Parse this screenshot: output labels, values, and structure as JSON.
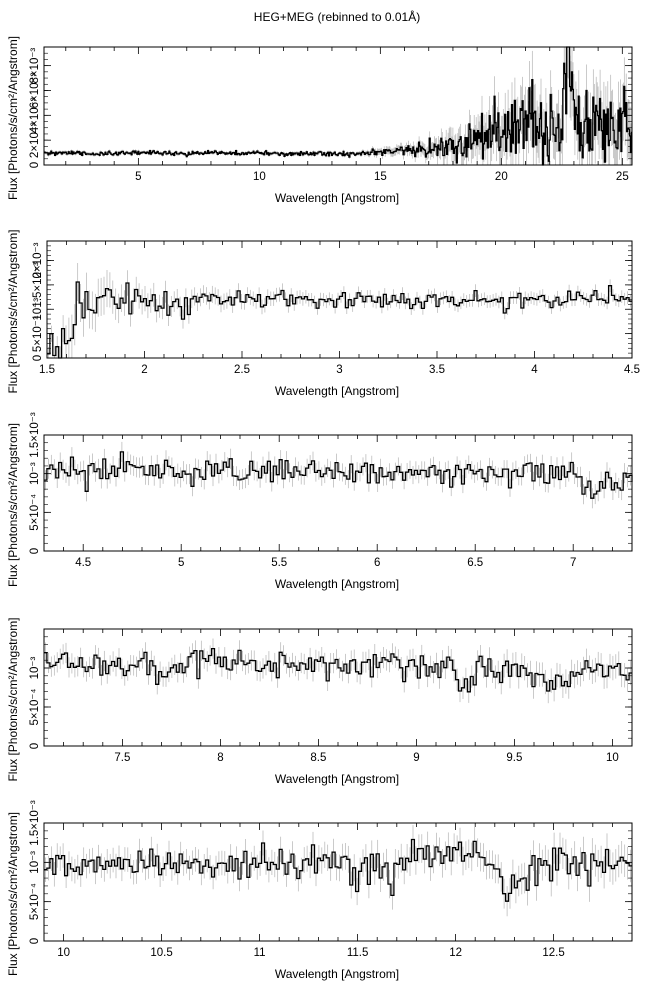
{
  "figure": {
    "title": "HEG+MEG (rebinned to 0.01Å)"
  },
  "chart_data": [
    {
      "type": "line",
      "title": "HEG+MEG (rebinned to 0.01Å)",
      "xlabel": "Wavelength [Angstrom]",
      "ylabel": "Flux [Photons/s/cm²/Angstrom]",
      "xlim": [
        1.1,
        25.4
      ],
      "ylim": [
        0,
        0.0095
      ],
      "grid": false,
      "xticks": [
        {
          "v": 5,
          "label": "5"
        },
        {
          "v": 10,
          "label": "10"
        },
        {
          "v": 15,
          "label": "15"
        },
        {
          "v": 20,
          "label": "20"
        },
        {
          "v": 25,
          "label": "25"
        }
      ],
      "yticks": [
        {
          "v": 0,
          "label": "0"
        },
        {
          "v": 0.002,
          "label": "2×10⁻³"
        },
        {
          "v": 0.004,
          "label": "4×10⁻³"
        },
        {
          "v": 0.006,
          "label": "6×10⁻³"
        },
        {
          "v": 0.008,
          "label": "8×10⁻³"
        }
      ],
      "series": [
        {
          "x": [
            1.2,
            2.0,
            3.0,
            4.0,
            5.0,
            6.0,
            7.0,
            8.0,
            9.0,
            10.0,
            11.0,
            12.0,
            13.0,
            14.0,
            15.0,
            16.0,
            17.0,
            17.5,
            18.0,
            18.5,
            19.0,
            19.5,
            20.0,
            20.5,
            21.0,
            21.3,
            21.6,
            22.0,
            22.5,
            22.8,
            23.0,
            23.5,
            24.0,
            24.5,
            25.0,
            25.3
          ],
          "y": [
            0.0009,
            0.001,
            0.0009,
            0.0009,
            0.001,
            0.001,
            0.0009,
            0.001,
            0.0009,
            0.001,
            0.0009,
            0.0009,
            0.0009,
            0.0009,
            0.001,
            0.0011,
            0.0013,
            0.0015,
            0.0017,
            0.0016,
            0.002,
            0.0022,
            0.0023,
            0.0025,
            0.003,
            0.0055,
            0.0025,
            0.003,
            0.0028,
            0.0095,
            0.003,
            0.003,
            0.0033,
            0.003,
            0.0035,
            0.003
          ],
          "noise": [
            0.0001,
            0.0001,
            0.0001,
            0.0001,
            0.0001,
            0.0001,
            0.0001,
            0.0001,
            0.0001,
            0.0001,
            0.0001,
            0.0001,
            0.0001,
            0.0001,
            0.0002,
            0.0003,
            0.0004,
            0.0006,
            0.0008,
            0.0008,
            0.001,
            0.0012,
            0.0013,
            0.0014,
            0.0015,
            0.0018,
            0.0015,
            0.0015,
            0.0015,
            0.002,
            0.0016,
            0.0016,
            0.0018,
            0.0017,
            0.0018,
            0.0018
          ]
        }
      ]
    },
    {
      "type": "line",
      "xlabel": "Wavelength [Angstrom]",
      "ylabel": "Flux [Photons/s/cm²/Angstrom]",
      "xlim": [
        1.5,
        4.5
      ],
      "ylim": [
        0,
        0.0024
      ],
      "grid": false,
      "xticks": [
        {
          "v": 1.5,
          "label": "1.5"
        },
        {
          "v": 2,
          "label": "2"
        },
        {
          "v": 2.5,
          "label": "2.5"
        },
        {
          "v": 3,
          "label": "3"
        },
        {
          "v": 3.5,
          "label": "3.5"
        },
        {
          "v": 4,
          "label": "4"
        },
        {
          "v": 4.5,
          "label": "4.5"
        }
      ],
      "yticks": [
        {
          "v": 0,
          "label": "0"
        },
        {
          "v": 0.0005,
          "label": "5×10⁻⁴"
        },
        {
          "v": 0.001,
          "label": "10⁻³"
        },
        {
          "v": 0.0015,
          "label": "1.5×10⁻³"
        },
        {
          "v": 0.002,
          "label": "2×10⁻³"
        }
      ],
      "series": [
        {
          "x": [
            1.5,
            1.58,
            1.62,
            1.65,
            1.7,
            1.8,
            1.9,
            2.0,
            2.2,
            2.5,
            3.0,
            3.5,
            4.0,
            4.5
          ],
          "y": [
            0.0001,
            0.0002,
            0.0008,
            0.0012,
            0.0011,
            0.0013,
            0.0012,
            0.0011,
            0.0011,
            0.0012,
            0.0012,
            0.0012,
            0.0012,
            0.0012
          ],
          "noise": [
            0.0001,
            0.0002,
            0.0004,
            0.0003,
            0.0003,
            0.0003,
            0.0002,
            0.0002,
            0.00015,
            0.00012,
            0.0001,
            0.0001,
            0.0001,
            0.0001
          ]
        }
      ]
    },
    {
      "type": "line",
      "xlabel": "Wavelength [Angstrom]",
      "ylabel": "Flux [Photons/s/cm²/Angstrom]",
      "xlim": [
        4.3,
        7.3
      ],
      "ylim": [
        0,
        0.0015
      ],
      "grid": false,
      "xticks": [
        {
          "v": 4.5,
          "label": "4.5"
        },
        {
          "v": 5,
          "label": "5"
        },
        {
          "v": 5.5,
          "label": "5.5"
        },
        {
          "v": 6,
          "label": "6"
        },
        {
          "v": 6.5,
          "label": "6.5"
        },
        {
          "v": 7,
          "label": "7"
        }
      ],
      "yticks": [
        {
          "v": 0,
          "label": "0"
        },
        {
          "v": 0.0005,
          "label": "5×10⁻⁴"
        },
        {
          "v": 0.001,
          "label": "10⁻³"
        },
        {
          "v": 0.0015,
          "label": "1.5×10⁻³"
        }
      ],
      "series": [
        {
          "x": [
            4.3,
            4.8,
            5.3,
            5.8,
            6.3,
            6.8,
            7.0,
            7.1,
            7.3
          ],
          "y": [
            0.00105,
            0.00103,
            0.00102,
            0.00102,
            0.00102,
            0.00101,
            0.00098,
            0.0008,
            0.001
          ],
          "noise": [
            0.0001,
            0.0001,
            0.0001,
            9e-05,
            9e-05,
            9e-05,
            0.0001,
            0.0001,
            0.0001
          ]
        }
      ]
    },
    {
      "type": "line",
      "xlabel": "Wavelength [Angstrom]",
      "ylabel": "Flux [Photons/s/cm²/Angstrom]",
      "xlim": [
        7.1,
        10.1
      ],
      "ylim": [
        0,
        0.0015
      ],
      "grid": false,
      "xticks": [
        {
          "v": 7.5,
          "label": "7.5"
        },
        {
          "v": 8,
          "label": "8"
        },
        {
          "v": 8.5,
          "label": "8.5"
        },
        {
          "v": 9,
          "label": "9"
        },
        {
          "v": 9.5,
          "label": "9.5"
        },
        {
          "v": 10,
          "label": "10"
        }
      ],
      "yticks": [
        {
          "v": 0,
          "label": "0"
        },
        {
          "v": 0.0005,
          "label": "5×10⁻⁴"
        },
        {
          "v": 0.001,
          "label": "10⁻³"
        }
      ],
      "series": [
        {
          "x": [
            7.1,
            7.6,
            8.1,
            8.6,
            9.1,
            9.25,
            9.3,
            9.5,
            9.75,
            9.8,
            10.1
          ],
          "y": [
            0.00108,
            0.00106,
            0.00104,
            0.00104,
            0.00102,
            0.0009,
            0.001,
            0.00096,
            0.00082,
            0.00095,
            0.00098
          ],
          "noise": [
            0.0001,
            0.0001,
            0.0001,
            0.0001,
            0.00011,
            0.00011,
            0.00011,
            0.00012,
            0.00012,
            0.00012,
            0.00012
          ]
        }
      ]
    },
    {
      "type": "line",
      "xlabel": "Wavelength [Angstrom]",
      "ylabel": "Flux [Photons/s/cm²/Angstrom]",
      "xlim": [
        9.9,
        12.9
      ],
      "ylim": [
        0,
        0.0015
      ],
      "grid": false,
      "xticks": [
        {
          "v": 10,
          "label": "10"
        },
        {
          "v": 10.5,
          "label": "10.5"
        },
        {
          "v": 11,
          "label": "11"
        },
        {
          "v": 11.5,
          "label": "11.5"
        },
        {
          "v": 12,
          "label": "12"
        },
        {
          "v": 12.5,
          "label": "12.5"
        }
      ],
      "yticks": [
        {
          "v": 0,
          "label": "0"
        },
        {
          "v": 0.0005,
          "label": "5×10⁻⁴"
        },
        {
          "v": 0.001,
          "label": "10⁻³"
        },
        {
          "v": 0.0015,
          "label": "1.5×10⁻³"
        }
      ],
      "series": [
        {
          "x": [
            9.9,
            10.4,
            10.9,
            11.4,
            11.7,
            11.8,
            12.2,
            12.28,
            12.4,
            12.9
          ],
          "y": [
            0.00098,
            0.00096,
            0.00098,
            0.00098,
            0.00085,
            0.0012,
            0.00098,
            0.0005,
            0.001,
            0.00098
          ],
          "noise": [
            0.00012,
            0.00012,
            0.00012,
            0.00013,
            0.00014,
            0.00014,
            0.00014,
            0.00015,
            0.00015,
            0.00016
          ]
        }
      ]
    }
  ]
}
